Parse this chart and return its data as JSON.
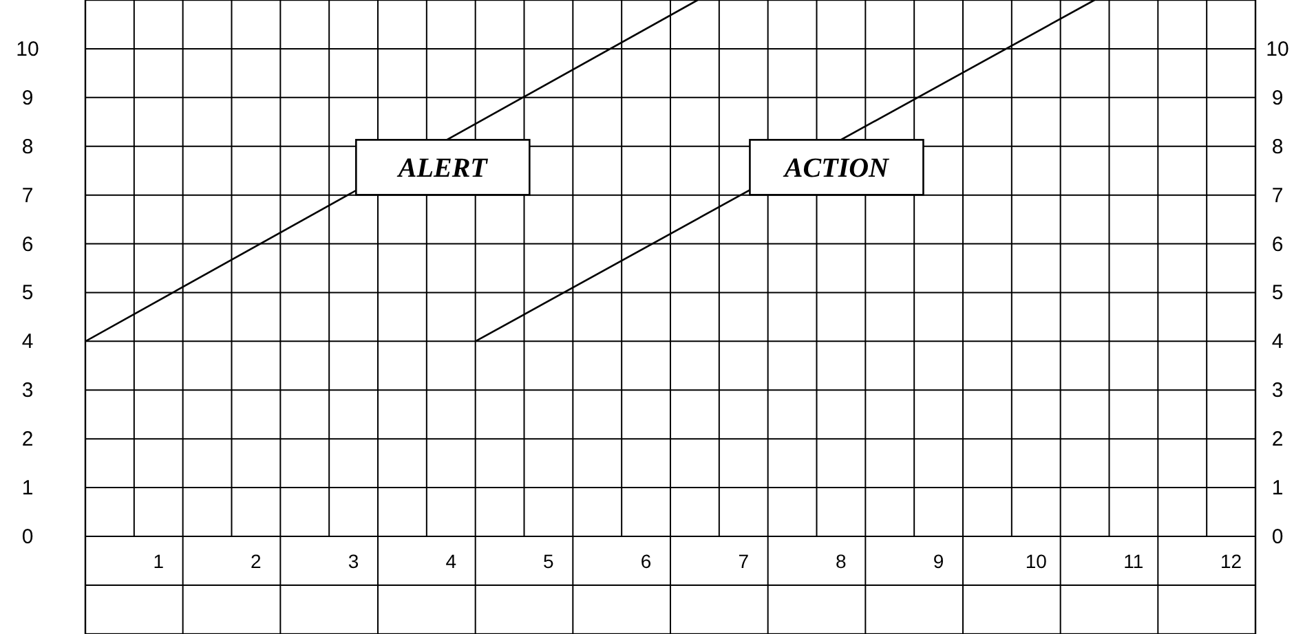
{
  "chart_data": {
    "type": "line",
    "xlim": [
      0,
      12
    ],
    "xticks": [
      {
        "value": 0.75,
        "label": "1"
      },
      {
        "value": 1.75,
        "label": "2"
      },
      {
        "value": 2.75,
        "label": "3"
      },
      {
        "value": 3.75,
        "label": "4"
      },
      {
        "value": 4.75,
        "label": "5"
      },
      {
        "value": 5.75,
        "label": "6"
      },
      {
        "value": 6.75,
        "label": "7"
      },
      {
        "value": 7.75,
        "label": "8"
      },
      {
        "value": 8.75,
        "label": "9"
      },
      {
        "value": 9.75,
        "label": "10"
      },
      {
        "value": 10.75,
        "label": "11"
      },
      {
        "value": 11.75,
        "label": "12"
      }
    ],
    "ylim": [
      0,
      11
    ],
    "yticks": [
      0,
      1,
      2,
      3,
      4,
      5,
      6,
      7,
      8,
      9,
      10
    ],
    "y2lim": [
      0,
      11
    ],
    "y2ticks": [
      0,
      1,
      2,
      3,
      4,
      5,
      6,
      7,
      8,
      9,
      10
    ],
    "grid": true,
    "series": [
      {
        "name": "ALERT",
        "color": "#000000",
        "x": [
          0,
          6.28
        ],
        "values": [
          4,
          11
        ]
      },
      {
        "name": "ACTION",
        "color": "#000000",
        "x": [
          4,
          10.35
        ],
        "values": [
          4,
          11
        ]
      }
    ],
    "legend": false
  }
}
